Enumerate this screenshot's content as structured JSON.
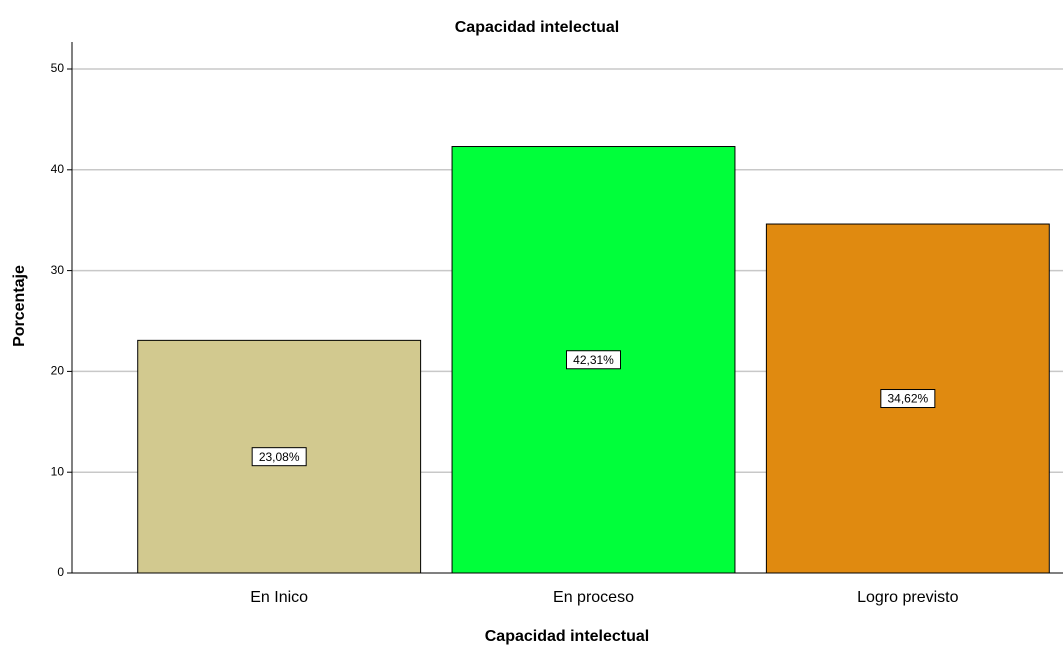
{
  "chart_data": {
    "type": "bar",
    "title": "Capacidad intelectual",
    "x_label": "Capacidad intelectual",
    "y_label": "Porcentaje",
    "categories": [
      "En Inico",
      "En proceso",
      "Logro previsto"
    ],
    "values": [
      23.08,
      42.31,
      34.62
    ],
    "value_labels": [
      "23,08%",
      "42,31%",
      "34,62%"
    ],
    "colors": [
      "#d2c98f",
      "#00ff3a",
      "#e08a10"
    ],
    "ylim": [
      0,
      50
    ],
    "yticks": [
      0,
      10,
      20,
      30,
      40,
      50
    ],
    "grid": true
  }
}
